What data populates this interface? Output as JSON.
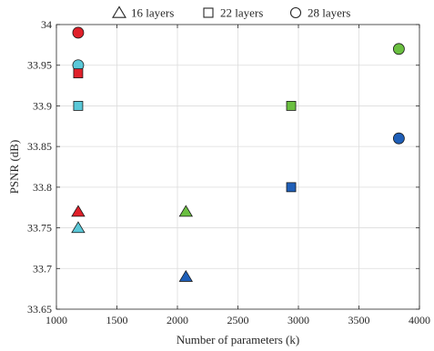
{
  "chart_data": {
    "type": "scatter",
    "xlabel": "Number of parameters (k)",
    "ylabel": "PSNR (dB)",
    "xlim": [
      1000,
      4000
    ],
    "ylim": [
      33.65,
      34
    ],
    "xticks": [
      1000,
      1500,
      2000,
      2500,
      3000,
      3500,
      4000
    ],
    "yticks": [
      33.65,
      33.7,
      33.75,
      33.8,
      33.85,
      33.9,
      33.95,
      34
    ],
    "xtick_labels": [
      "1000",
      "1500",
      "2000",
      "2500",
      "3000",
      "3500",
      "4000"
    ],
    "ytick_labels": [
      "33.65",
      "33.7",
      "33.75",
      "33.8",
      "33.85",
      "33.9",
      "33.95",
      "34"
    ],
    "grid": true,
    "legend_position": "top",
    "legend": [
      {
        "marker": "triangle",
        "label": "16 layers"
      },
      {
        "marker": "square",
        "label": "22 layers"
      },
      {
        "marker": "circle",
        "label": "28 layers"
      }
    ],
    "points": [
      {
        "x": 1180,
        "y": 33.99,
        "marker": "circle",
        "color": "#e0202a"
      },
      {
        "x": 1180,
        "y": 33.95,
        "marker": "circle",
        "color": "#5ac8d8"
      },
      {
        "x": 1180,
        "y": 33.94,
        "marker": "square",
        "color": "#e0202a"
      },
      {
        "x": 1180,
        "y": 33.9,
        "marker": "square",
        "color": "#5ac8d8"
      },
      {
        "x": 1180,
        "y": 33.77,
        "marker": "triangle",
        "color": "#e0202a"
      },
      {
        "x": 1180,
        "y": 33.75,
        "marker": "triangle",
        "color": "#5ac8d8"
      },
      {
        "x": 2070,
        "y": 33.77,
        "marker": "triangle",
        "color": "#6abf40"
      },
      {
        "x": 2070,
        "y": 33.69,
        "marker": "triangle",
        "color": "#1f5fb8"
      },
      {
        "x": 2940,
        "y": 33.9,
        "marker": "square",
        "color": "#6abf40"
      },
      {
        "x": 2940,
        "y": 33.8,
        "marker": "square",
        "color": "#1f5fb8"
      },
      {
        "x": 3830,
        "y": 33.97,
        "marker": "circle",
        "color": "#6abf40"
      },
      {
        "x": 3830,
        "y": 33.86,
        "marker": "circle",
        "color": "#1f5fb8"
      }
    ]
  }
}
